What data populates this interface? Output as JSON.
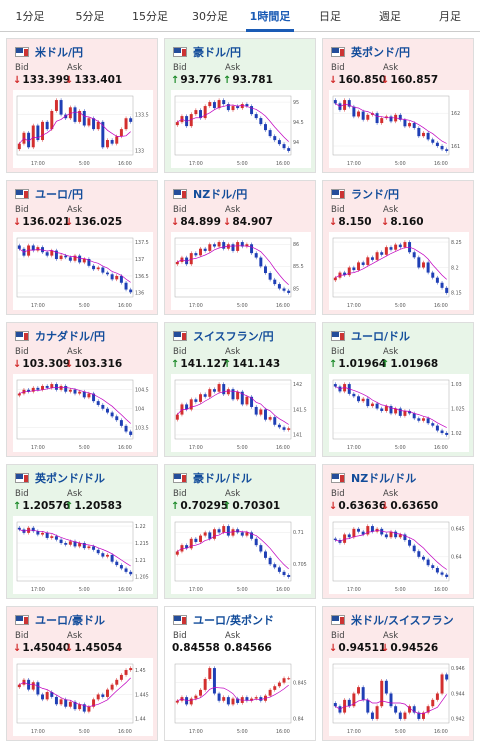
{
  "tabs": [
    {
      "label": "1分足",
      "active": false
    },
    {
      "label": "5分足",
      "active": false
    },
    {
      "label": "15分足",
      "active": false
    },
    {
      "label": "30分足",
      "active": false
    },
    {
      "label": "1時間足",
      "active": true
    },
    {
      "label": "日足",
      "active": false
    },
    {
      "label": "週足",
      "active": false
    },
    {
      "label": "月足",
      "active": false
    }
  ],
  "labels": {
    "bid": "Bid",
    "ask": "Ask"
  },
  "colors": {
    "down_bg": "#fce9ea",
    "up_bg": "#e8f5e8",
    "flat_bg": "#ffffff",
    "down_arrow": "#d22b2b",
    "up_arrow": "#1d8a2a",
    "title": "#124c9a",
    "candle_up": "#d32f2f",
    "candle_down": "#1f3fb5",
    "ma_line": "#c000c0"
  },
  "cards": [
    {
      "pair": "米ドル/円",
      "direction": "down",
      "bid": "133.399",
      "ask": "133.401",
      "bid_arrow": "↓",
      "ask_arrow": "↓",
      "icon": "us-flag-icon",
      "chart_data": {
        "type": "candlestick",
        "x_ticks": [
          "17:00",
          "5:00",
          "16:00"
        ],
        "y_ticks": [
          "133.5",
          "133"
        ],
        "close": [
          133.1,
          133.25,
          133.05,
          133.35,
          133.15,
          133.4,
          133.3,
          133.55,
          133.7,
          133.5,
          133.45,
          133.6,
          133.4,
          133.55,
          133.35,
          133.45,
          133.3,
          133.4,
          133.05,
          133.15,
          133.1,
          133.2,
          133.3,
          133.45,
          133.4
        ]
      }
    },
    {
      "pair": "豪ドル/円",
      "direction": "up",
      "bid": "93.776",
      "ask": "93.781",
      "bid_arrow": "↑",
      "ask_arrow": "↑",
      "icon": "au-flag-icon",
      "chart_data": {
        "type": "candlestick",
        "x_ticks": [
          "17:00",
          "5:00",
          "16:00"
        ],
        "y_ticks": [
          "95",
          "94.5",
          "94"
        ],
        "close": [
          94.5,
          94.65,
          94.4,
          94.7,
          94.8,
          94.6,
          94.9,
          95.0,
          94.85,
          95.05,
          94.95,
          94.8,
          94.9,
          94.85,
          94.95,
          94.9,
          94.7,
          94.6,
          94.45,
          94.3,
          94.15,
          94.05,
          93.95,
          93.85,
          93.78
        ]
      }
    },
    {
      "pair": "英ポンド/円",
      "direction": "down",
      "bid": "160.850",
      "ask": "160.857",
      "bid_arrow": "↓",
      "ask_arrow": "↓",
      "icon": "uk-flag-icon",
      "chart_data": {
        "type": "candlestick",
        "x_ticks": [
          "17:00",
          "5:00",
          "16:00"
        ],
        "y_ticks": [
          "162",
          "161"
        ],
        "close": [
          162.3,
          162.1,
          162.4,
          162.2,
          161.9,
          162.05,
          161.8,
          161.95,
          162.0,
          161.7,
          161.85,
          161.9,
          161.75,
          161.95,
          161.8,
          161.6,
          161.7,
          161.55,
          161.3,
          161.4,
          161.2,
          161.1,
          161.0,
          160.9,
          160.85
        ]
      }
    },
    {
      "pair": "ユーロ/円",
      "direction": "down",
      "bid": "136.021",
      "ask": "136.025",
      "bid_arrow": "↓",
      "ask_arrow": "↓",
      "icon": "eu-flag-icon",
      "chart_data": {
        "type": "candlestick",
        "x_ticks": [
          "17:00",
          "5:00",
          "16:00"
        ],
        "y_ticks": [
          "137.5",
          "137",
          "136.5",
          "136"
        ],
        "close": [
          137.3,
          137.1,
          137.4,
          137.25,
          137.35,
          137.2,
          137.1,
          137.25,
          137.0,
          137.1,
          137.05,
          136.95,
          137.1,
          136.9,
          137.0,
          136.8,
          136.7,
          136.75,
          136.6,
          136.55,
          136.4,
          136.5,
          136.3,
          136.1,
          136.02
        ]
      }
    },
    {
      "pair": "NZドル/円",
      "direction": "down",
      "bid": "84.899",
      "ask": "84.907",
      "bid_arrow": "↓",
      "ask_arrow": "↓",
      "icon": "nz-flag-icon",
      "chart_data": {
        "type": "candlestick",
        "x_ticks": [
          "17:00",
          "5:00",
          "16:00"
        ],
        "y_ticks": [
          "86",
          "85.5",
          "85"
        ],
        "close": [
          85.6,
          85.7,
          85.55,
          85.8,
          85.75,
          85.9,
          85.85,
          86.0,
          85.95,
          86.05,
          85.9,
          86.0,
          85.85,
          86.05,
          85.95,
          86.0,
          85.8,
          85.7,
          85.5,
          85.35,
          85.2,
          85.1,
          85.0,
          84.95,
          84.9
        ]
      }
    },
    {
      "pair": "ランド/円",
      "direction": "down",
      "bid": "8.150",
      "ask": "8.160",
      "bid_arrow": "↓",
      "ask_arrow": "↓",
      "icon": "za-flag-icon",
      "chart_data": {
        "type": "candlestick",
        "x_ticks": [
          "17:00",
          "5:00",
          "16:00"
        ],
        "y_ticks": [
          "8.25",
          "8.2",
          "8.15"
        ],
        "close": [
          8.18,
          8.19,
          8.185,
          8.2,
          8.195,
          8.21,
          8.205,
          8.22,
          8.215,
          8.23,
          8.225,
          8.24,
          8.235,
          8.245,
          8.24,
          8.25,
          8.23,
          8.22,
          8.2,
          8.21,
          8.19,
          8.18,
          8.17,
          8.16,
          8.15
        ]
      }
    },
    {
      "pair": "カナダドル/円",
      "direction": "down",
      "bid": "103.309",
      "ask": "103.316",
      "bid_arrow": "↓",
      "ask_arrow": "↓",
      "icon": "ca-flag-icon",
      "chart_data": {
        "type": "candlestick",
        "x_ticks": [
          "17:00",
          "5:00",
          "16:00"
        ],
        "y_ticks": [
          "104.5",
          "104",
          "103.5"
        ],
        "close": [
          104.4,
          104.5,
          104.45,
          104.55,
          104.5,
          104.6,
          104.55,
          104.65,
          104.5,
          104.6,
          104.45,
          104.5,
          104.4,
          104.45,
          104.3,
          104.4,
          104.2,
          104.1,
          104.0,
          103.9,
          103.8,
          103.7,
          103.55,
          103.4,
          103.31
        ]
      }
    },
    {
      "pair": "スイスフラン/円",
      "direction": "up",
      "bid": "141.127",
      "ask": "141.143",
      "bid_arrow": "↑",
      "ask_arrow": "↑",
      "icon": "ch-flag-icon",
      "chart_data": {
        "type": "candlestick",
        "x_ticks": [
          "17:00",
          "5:00",
          "16:00"
        ],
        "y_ticks": [
          "142",
          "141.5",
          "141"
        ],
        "close": [
          141.4,
          141.6,
          141.5,
          141.7,
          141.65,
          141.8,
          141.75,
          141.9,
          141.85,
          142.0,
          141.8,
          141.9,
          141.7,
          141.85,
          141.6,
          141.75,
          141.55,
          141.4,
          141.5,
          141.3,
          141.35,
          141.2,
          141.15,
          141.1,
          141.13
        ]
      }
    },
    {
      "pair": "ユーロ/ドル",
      "direction": "up",
      "bid": "1.01964",
      "ask": "1.01968",
      "bid_arrow": "↑",
      "ask_arrow": "↑",
      "icon": "eu-flag-icon",
      "chart_data": {
        "type": "candlestick",
        "x_ticks": [
          "17:00",
          "5:00",
          "16:00"
        ],
        "y_ticks": [
          "1.03",
          "1.025",
          "1.02"
        ],
        "close": [
          1.0295,
          1.0285,
          1.03,
          1.028,
          1.0275,
          1.0265,
          1.027,
          1.0255,
          1.026,
          1.025,
          1.0245,
          1.0255,
          1.024,
          1.025,
          1.0235,
          1.0245,
          1.024,
          1.023,
          1.0225,
          1.023,
          1.022,
          1.0215,
          1.0205,
          1.02,
          1.0196
        ]
      }
    },
    {
      "pair": "英ポンド/ドル",
      "direction": "up",
      "bid": "1.20576",
      "ask": "1.20583",
      "bid_arrow": "↑",
      "ask_arrow": "↑",
      "icon": "uk-flag-icon",
      "chart_data": {
        "type": "candlestick",
        "x_ticks": [
          "17:00",
          "5:00",
          "16:00"
        ],
        "y_ticks": [
          "1.22",
          "1.215",
          "1.21",
          "1.205"
        ],
        "close": [
          1.219,
          1.218,
          1.2195,
          1.2185,
          1.2175,
          1.218,
          1.2165,
          1.217,
          1.216,
          1.215,
          1.2145,
          1.2155,
          1.214,
          1.215,
          1.2135,
          1.214,
          1.213,
          1.212,
          1.211,
          1.2115,
          1.2095,
          1.2085,
          1.2075,
          1.2065,
          1.2058
        ]
      }
    },
    {
      "pair": "豪ドル/ドル",
      "direction": "up",
      "bid": "0.70295",
      "ask": "0.70301",
      "bid_arrow": "↑",
      "ask_arrow": "↑",
      "icon": "au-flag-icon",
      "chart_data": {
        "type": "candlestick",
        "x_ticks": [
          "17:00",
          "5:00",
          "16:00"
        ],
        "y_ticks": [
          "0.71",
          "0.705"
        ],
        "close": [
          0.707,
          0.708,
          0.7075,
          0.709,
          0.7085,
          0.7095,
          0.71,
          0.709,
          0.7105,
          0.71,
          0.711,
          0.7095,
          0.7105,
          0.71,
          0.7095,
          0.71,
          0.709,
          0.708,
          0.707,
          0.706,
          0.705,
          0.7045,
          0.7038,
          0.7033,
          0.703
        ]
      }
    },
    {
      "pair": "NZドル/ドル",
      "direction": "down",
      "bid": "0.63636",
      "ask": "0.63650",
      "bid_arrow": "↓",
      "ask_arrow": "↓",
      "icon": "nz-flag-icon",
      "chart_data": {
        "type": "candlestick",
        "x_ticks": [
          "17:00",
          "5:00",
          "16:00"
        ],
        "y_ticks": [
          "0.645",
          "0.64"
        ],
        "close": [
          0.643,
          0.6425,
          0.644,
          0.6435,
          0.645,
          0.6445,
          0.644,
          0.6455,
          0.6445,
          0.645,
          0.644,
          0.6435,
          0.6445,
          0.6435,
          0.644,
          0.643,
          0.642,
          0.641,
          0.64,
          0.6395,
          0.6385,
          0.638,
          0.6372,
          0.6368,
          0.6364
        ]
      }
    },
    {
      "pair": "ユーロ/豪ドル",
      "direction": "down",
      "bid": "1.45040",
      "ask": "1.45054",
      "bid_arrow": "↓",
      "ask_arrow": "↓",
      "icon": "eu-flag-icon",
      "chart_data": {
        "type": "candlestick",
        "x_ticks": [
          "17:00",
          "5:00",
          "16:00"
        ],
        "y_ticks": [
          "1.45",
          "1.445",
          "1.44"
        ],
        "close": [
          1.447,
          1.448,
          1.446,
          1.4475,
          1.445,
          1.444,
          1.4455,
          1.4445,
          1.443,
          1.444,
          1.4425,
          1.4435,
          1.442,
          1.443,
          1.4415,
          1.4425,
          1.444,
          1.445,
          1.4445,
          1.446,
          1.447,
          1.448,
          1.449,
          1.45,
          1.4504
        ]
      }
    },
    {
      "pair": "ユーロ/英ポンド",
      "direction": "flat",
      "bid": "0.84558",
      "ask": "0.84566",
      "bid_arrow": "",
      "ask_arrow": "",
      "icon": "eu-flag-icon",
      "chart_data": {
        "type": "candlestick",
        "x_ticks": [
          "17:00",
          "5:00",
          "16:00"
        ],
        "y_ticks": [
          "0.845",
          "0.84"
        ],
        "close": [
          0.8425,
          0.843,
          0.842,
          0.8428,
          0.8432,
          0.844,
          0.8455,
          0.847,
          0.8435,
          0.8425,
          0.843,
          0.842,
          0.8428,
          0.8422,
          0.843,
          0.8425,
          0.8428,
          0.843,
          0.8425,
          0.8432,
          0.844,
          0.8445,
          0.845,
          0.8456,
          0.8456
        ]
      }
    },
    {
      "pair": "米ドル/スイスフラン",
      "direction": "down",
      "bid": "0.94511",
      "ask": "0.94526",
      "bid_arrow": "↓",
      "ask_arrow": "↓",
      "icon": "us-flag-icon",
      "chart_data": {
        "type": "candlestick",
        "x_ticks": [
          "17:00",
          "5:00",
          "16:00"
        ],
        "y_ticks": [
          "0.946",
          "0.944",
          "0.942"
        ],
        "close": [
          0.943,
          0.9425,
          0.9435,
          0.943,
          0.944,
          0.9445,
          0.9435,
          0.9425,
          0.942,
          0.943,
          0.945,
          0.944,
          0.943,
          0.9425,
          0.942,
          0.9425,
          0.943,
          0.9425,
          0.942,
          0.9425,
          0.943,
          0.9435,
          0.944,
          0.9455,
          0.9451
        ]
      }
    }
  ]
}
